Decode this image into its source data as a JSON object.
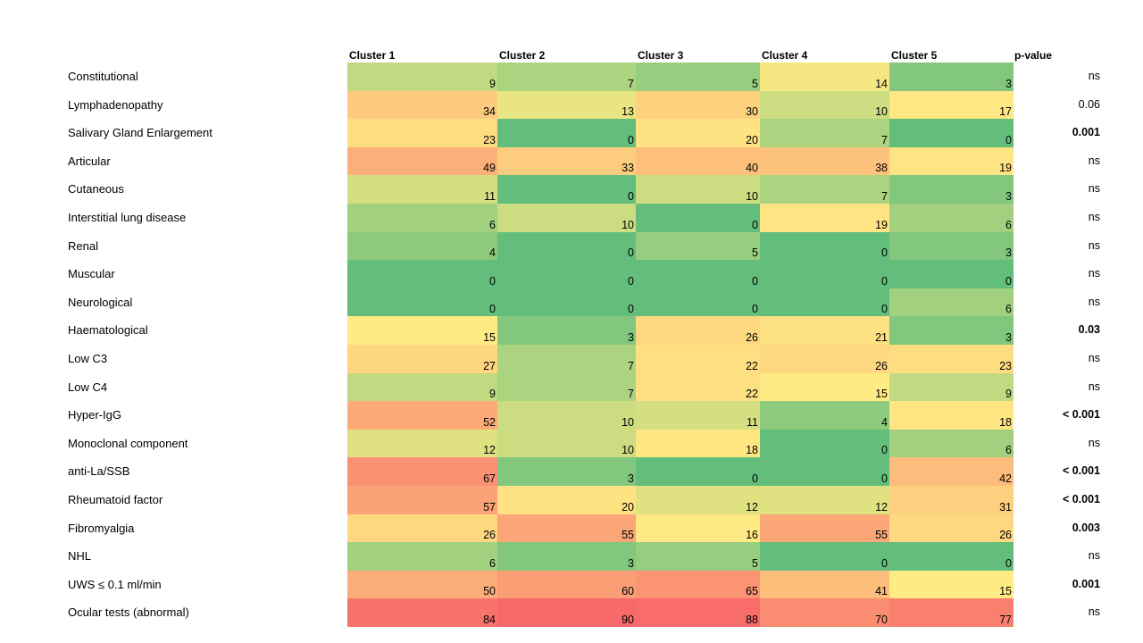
{
  "chart_data": {
    "type": "heatmap",
    "columns": [
      "Cluster 1",
      "Cluster 2",
      "Cluster 3",
      "Cluster 4",
      "Cluster 5"
    ],
    "pvalue_header": "p-value",
    "rows": [
      {
        "label": "Constitutional",
        "values": [
          9,
          7,
          5,
          14,
          3
        ],
        "p": "ns",
        "bold": false
      },
      {
        "label": "Lymphadenopathy",
        "values": [
          34,
          13,
          30,
          10,
          17
        ],
        "p": "0.06",
        "bold": false
      },
      {
        "label": "Salivary Gland Enlargement",
        "values": [
          23,
          0,
          20,
          7,
          0
        ],
        "p": "0.001",
        "bold": true
      },
      {
        "label": "Articular",
        "values": [
          49,
          33,
          40,
          38,
          19
        ],
        "p": "ns",
        "bold": false
      },
      {
        "label": "Cutaneous",
        "values": [
          11,
          0,
          10,
          7,
          3
        ],
        "p": "ns",
        "bold": false
      },
      {
        "label": "Interstitial lung disease",
        "values": [
          6,
          10,
          0,
          19,
          6
        ],
        "p": "ns",
        "bold": false
      },
      {
        "label": "Renal",
        "values": [
          4,
          0,
          5,
          0,
          3
        ],
        "p": "ns",
        "bold": false
      },
      {
        "label": "Muscular",
        "values": [
          0,
          0,
          0,
          0,
          0
        ],
        "p": "ns",
        "bold": false
      },
      {
        "label": "Neurological",
        "values": [
          0,
          0,
          0,
          0,
          6
        ],
        "p": "ns",
        "bold": false
      },
      {
        "label": "Haematological",
        "values": [
          15,
          3,
          26,
          21,
          3
        ],
        "p": "0.03",
        "bold": true
      },
      {
        "label": "Low C3",
        "values": [
          27,
          7,
          22,
          26,
          23
        ],
        "p": "ns",
        "bold": false
      },
      {
        "label": "Low C4",
        "values": [
          9,
          7,
          22,
          15,
          9
        ],
        "p": "ns",
        "bold": false
      },
      {
        "label": "Hyper-IgG",
        "values": [
          52,
          10,
          11,
          4,
          18
        ],
        "p": "< 0.001",
        "bold": true
      },
      {
        "label": "Monoclonal component",
        "values": [
          12,
          10,
          18,
          0,
          6
        ],
        "p": "ns",
        "bold": false
      },
      {
        "label": "anti-La/SSB",
        "values": [
          67,
          3,
          0,
          0,
          42
        ],
        "p": "< 0.001",
        "bold": true
      },
      {
        "label": "Rheumatoid factor",
        "values": [
          57,
          20,
          12,
          12,
          31
        ],
        "p": "< 0.001",
        "bold": true
      },
      {
        "label": "Fibromyalgia",
        "values": [
          26,
          55,
          16,
          55,
          26
        ],
        "p": "0.003",
        "bold": true
      },
      {
        "label": "NHL",
        "values": [
          6,
          3,
          5,
          0,
          0
        ],
        "p": "ns",
        "bold": false
      },
      {
        "label": "UWS ≤ 0.1 ml/min",
        "values": [
          50,
          60,
          65,
          41,
          15
        ],
        "p": "0.001",
        "bold": true
      },
      {
        "label": "Ocular tests (abnormal)",
        "values": [
          84,
          90,
          88,
          70,
          77
        ],
        "p": "ns",
        "bold": false
      }
    ],
    "colors": {
      "low": "#63be7b",
      "mid": "#ffeb84",
      "high": "#f8696b"
    }
  }
}
